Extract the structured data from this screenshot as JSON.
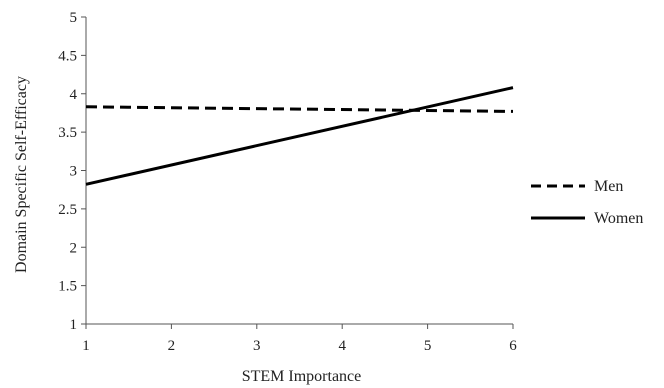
{
  "chart_data": {
    "type": "line",
    "title": "",
    "xlabel": "STEM Importance",
    "ylabel": "Domain Specific Self-Efficacy",
    "xlim": [
      1,
      6
    ],
    "ylim": [
      1,
      5
    ],
    "x_ticks": [
      "1",
      "2",
      "3",
      "4",
      "5",
      "6"
    ],
    "y_ticks": [
      "1",
      "1.5",
      "2",
      "2.5",
      "3",
      "3.5",
      "4",
      "4.5",
      "5"
    ],
    "grid": false,
    "legend_position": "right",
    "series": [
      {
        "name": "Men",
        "style": "dashed",
        "color": "#000000",
        "x": [
          1,
          6
        ],
        "y": [
          3.83,
          3.77
        ]
      },
      {
        "name": "Women",
        "style": "solid",
        "color": "#000000",
        "x": [
          1,
          6
        ],
        "y": [
          2.82,
          4.08
        ]
      }
    ]
  }
}
